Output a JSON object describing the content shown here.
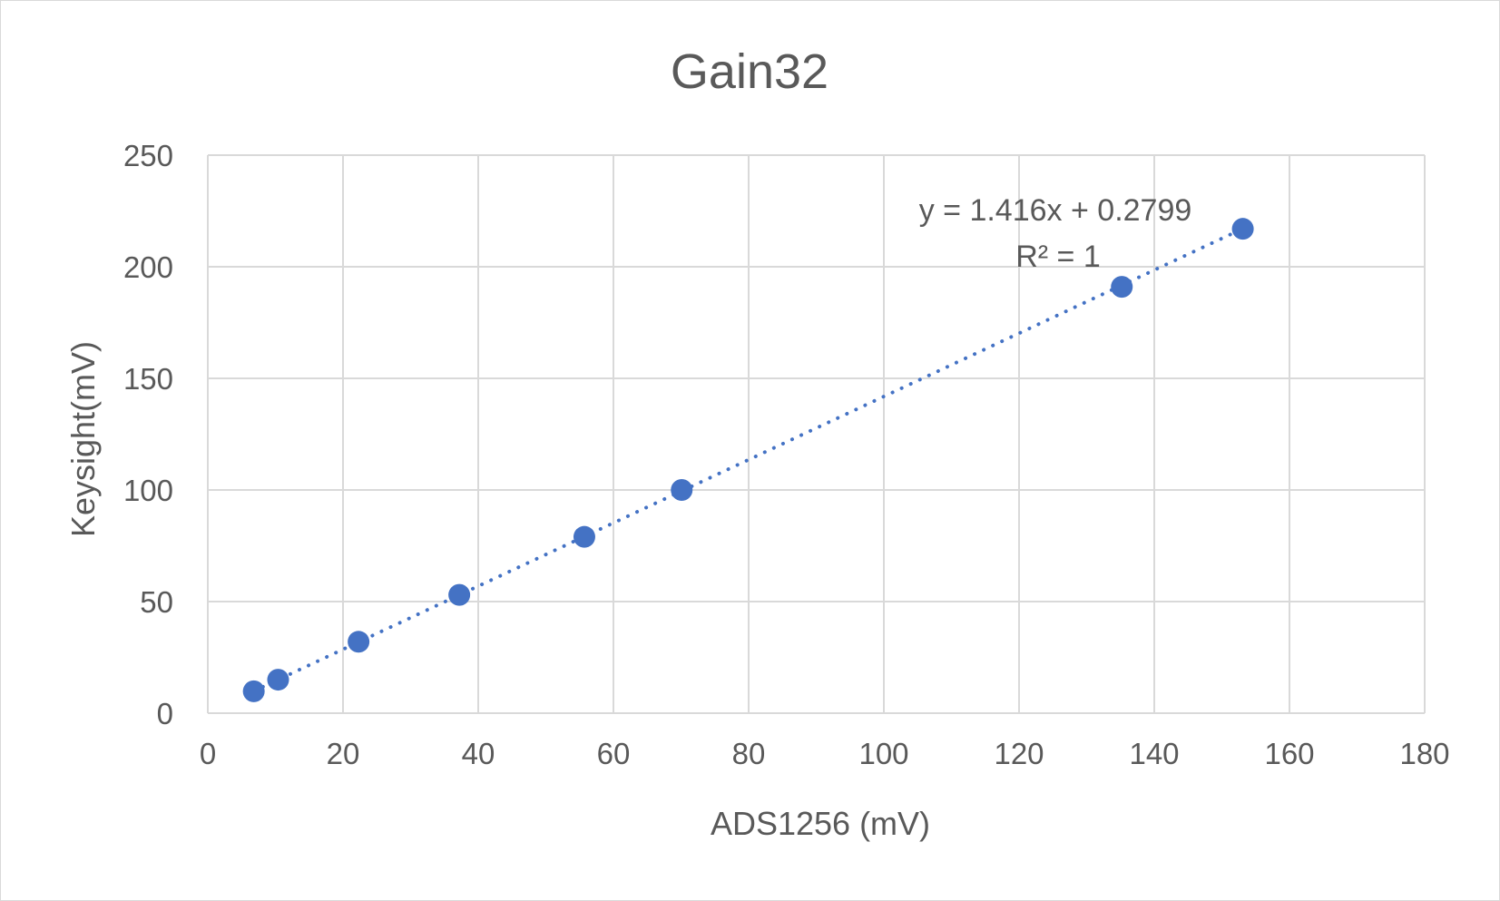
{
  "chart_data": {
    "type": "scatter",
    "title": "Gain32",
    "xlabel": "ADS1256 (mV)",
    "ylabel": "Keysight(mV)",
    "xlim": [
      0,
      180
    ],
    "ylim": [
      0,
      250
    ],
    "x_ticks": [
      0,
      20,
      40,
      60,
      80,
      100,
      120,
      140,
      160,
      180
    ],
    "y_ticks": [
      0,
      50,
      100,
      150,
      200,
      250
    ],
    "grid": true,
    "legend": "none",
    "series": [
      {
        "x": [
          6.8,
          10.4,
          22.3,
          37.2,
          55.7,
          70.1,
          135.2,
          153.1
        ],
        "y": [
          9.8,
          15.0,
          32.0,
          53.0,
          79.0,
          100.0,
          191.0,
          217.0
        ],
        "color": "#4472c4"
      }
    ],
    "trendline": {
      "type": "linear",
      "slope": 1.416,
      "intercept": 0.2799,
      "x_range": [
        6.8,
        153.1
      ],
      "style": "dotted",
      "color": "#4472c4",
      "equation": "y = 1.416x + 0.2799",
      "r_squared": "R² = 1"
    }
  }
}
